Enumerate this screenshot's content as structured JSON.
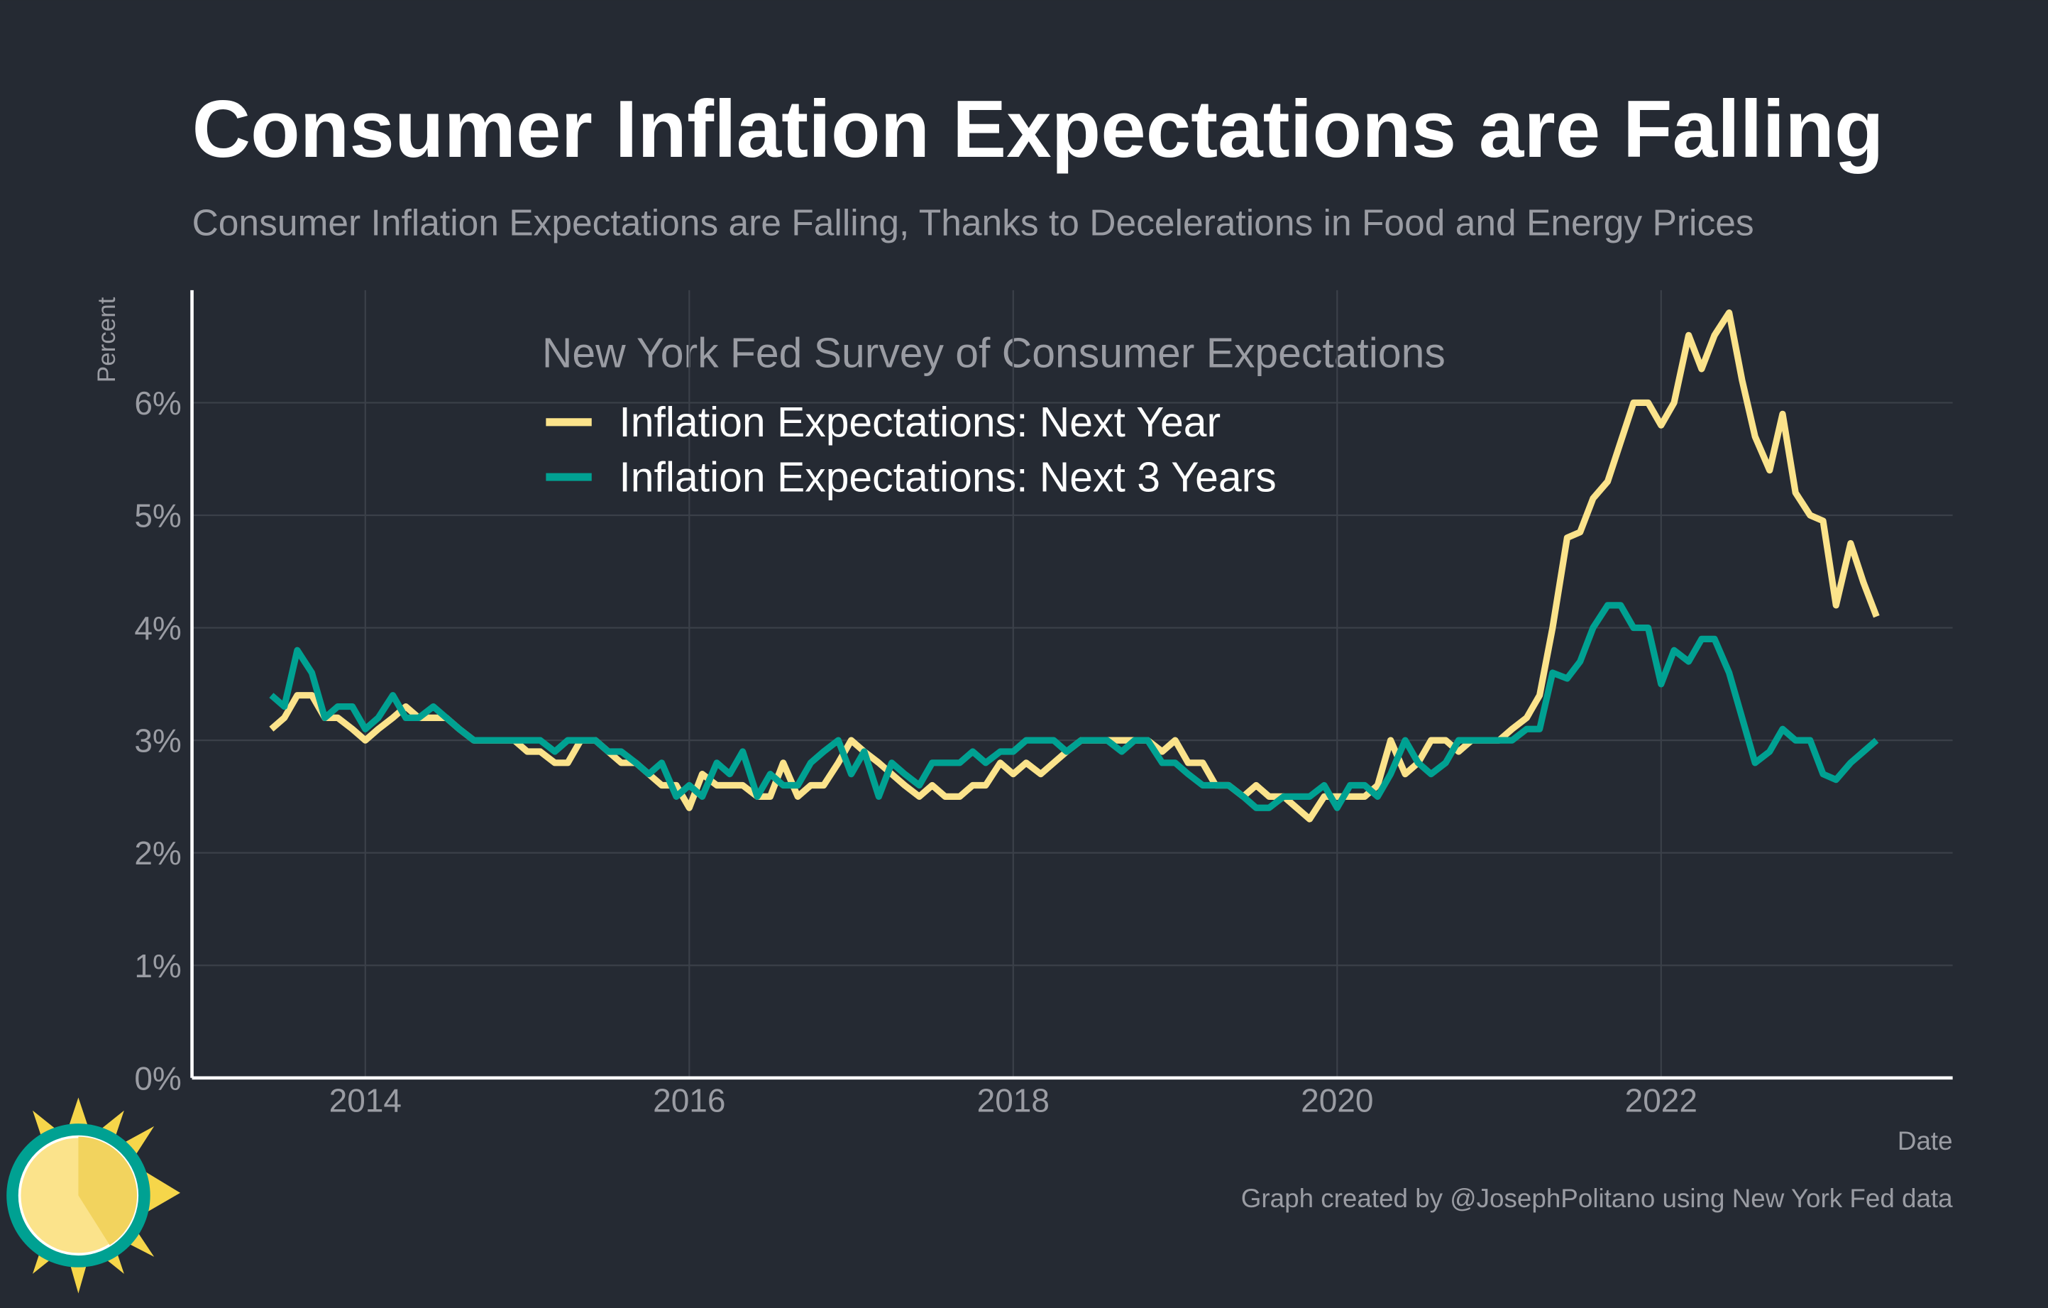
{
  "chart_data": {
    "type": "line",
    "title": "Consumer Inflation Expectations are Falling",
    "subtitle": "Consumer Inflation Expectations are Falling, Thanks to Decelerations in Food and Energy Prices",
    "ylabel": "Percent",
    "xlabel": "Date",
    "legend_title": "New York Fed Survey of Consumer Expectations",
    "caption": "Graph created by @JosephPolitano using New York Fed data",
    "grid": true,
    "xlim": [
      2012.93,
      2023.8
    ],
    "xticks": [
      2014,
      2016,
      2018,
      2020,
      2022
    ],
    "ylim": [
      0,
      7
    ],
    "yticks": [
      {
        "value": 0,
        "label": "0%"
      },
      {
        "value": 1,
        "label": "1%"
      },
      {
        "value": 2,
        "label": "2%"
      },
      {
        "value": 3,
        "label": "3%"
      },
      {
        "value": 4,
        "label": "4%"
      },
      {
        "value": 5,
        "label": "5%"
      },
      {
        "value": 6,
        "label": "6%"
      }
    ],
    "x": [
      2013.42,
      2013.5,
      2013.58,
      2013.67,
      2013.75,
      2013.83,
      2013.92,
      2014.0,
      2014.08,
      2014.17,
      2014.25,
      2014.33,
      2014.42,
      2014.5,
      2014.58,
      2014.67,
      2014.75,
      2014.83,
      2014.92,
      2015.0,
      2015.08,
      2015.17,
      2015.25,
      2015.33,
      2015.42,
      2015.5,
      2015.58,
      2015.67,
      2015.75,
      2015.83,
      2015.92,
      2016.0,
      2016.08,
      2016.17,
      2016.25,
      2016.33,
      2016.42,
      2016.5,
      2016.58,
      2016.67,
      2016.75,
      2016.83,
      2016.92,
      2017.0,
      2017.08,
      2017.17,
      2017.25,
      2017.33,
      2017.42,
      2017.5,
      2017.58,
      2017.67,
      2017.75,
      2017.83,
      2017.92,
      2018.0,
      2018.08,
      2018.17,
      2018.25,
      2018.33,
      2018.42,
      2018.5,
      2018.58,
      2018.67,
      2018.75,
      2018.83,
      2018.92,
      2019.0,
      2019.08,
      2019.17,
      2019.25,
      2019.33,
      2019.42,
      2019.5,
      2019.58,
      2019.67,
      2019.75,
      2019.83,
      2019.92,
      2020.0,
      2020.08,
      2020.17,
      2020.25,
      2020.33,
      2020.42,
      2020.5,
      2020.58,
      2020.67,
      2020.75,
      2020.83,
      2020.92,
      2021.0,
      2021.08,
      2021.17,
      2021.25,
      2021.33,
      2021.42,
      2021.5,
      2021.58,
      2021.67,
      2021.75,
      2021.83,
      2021.92,
      2022.0,
      2022.08,
      2022.17,
      2022.25,
      2022.33,
      2022.42,
      2022.5,
      2022.58,
      2022.67,
      2022.75,
      2022.83,
      2022.92,
      2023.0,
      2023.08,
      2023.17,
      2023.25,
      2023.33
    ],
    "series": [
      {
        "name": "Inflation Expectations: Next Year",
        "color": "#fbe38b",
        "values": [
          3.1,
          3.2,
          3.4,
          3.4,
          3.2,
          3.2,
          3.1,
          3.0,
          3.1,
          3.2,
          3.3,
          3.2,
          3.2,
          3.2,
          3.1,
          3.0,
          3.0,
          3.0,
          3.0,
          2.9,
          2.9,
          2.8,
          2.8,
          3.0,
          3.0,
          2.9,
          2.8,
          2.8,
          2.7,
          2.6,
          2.6,
          2.4,
          2.7,
          2.6,
          2.6,
          2.6,
          2.5,
          2.5,
          2.8,
          2.5,
          2.6,
          2.6,
          2.8,
          3.0,
          2.9,
          2.8,
          2.7,
          2.6,
          2.5,
          2.6,
          2.5,
          2.5,
          2.6,
          2.6,
          2.8,
          2.7,
          2.8,
          2.7,
          2.8,
          2.9,
          3.0,
          3.0,
          3.0,
          3.0,
          3.0,
          3.0,
          2.9,
          3.0,
          2.8,
          2.8,
          2.6,
          2.6,
          2.5,
          2.6,
          2.5,
          2.5,
          2.4,
          2.3,
          2.5,
          2.5,
          2.5,
          2.5,
          2.6,
          3.0,
          2.7,
          2.8,
          3.0,
          3.0,
          2.9,
          3.0,
          3.0,
          3.0,
          3.1,
          3.2,
          3.4,
          4.0,
          4.8,
          4.85,
          5.15,
          5.3,
          5.65,
          6.0,
          6.0,
          5.8,
          6.0,
          6.6,
          6.3,
          6.6,
          6.8,
          6.2,
          5.7,
          5.4,
          5.9,
          5.2,
          5.0,
          4.95,
          4.2,
          4.75,
          4.4,
          4.1
        ]
      },
      {
        "name": "Inflation Expectations: Next 3 Years",
        "color": "#00a192",
        "values": [
          3.4,
          3.3,
          3.8,
          3.6,
          3.2,
          3.3,
          3.3,
          3.1,
          3.2,
          3.4,
          3.2,
          3.2,
          3.3,
          3.2,
          3.1,
          3.0,
          3.0,
          3.0,
          3.0,
          3.0,
          3.0,
          2.9,
          3.0,
          3.0,
          3.0,
          2.9,
          2.9,
          2.8,
          2.7,
          2.8,
          2.5,
          2.6,
          2.5,
          2.8,
          2.7,
          2.9,
          2.5,
          2.7,
          2.6,
          2.6,
          2.8,
          2.9,
          3.0,
          2.7,
          2.9,
          2.5,
          2.8,
          2.7,
          2.6,
          2.8,
          2.8,
          2.8,
          2.9,
          2.8,
          2.9,
          2.9,
          3.0,
          3.0,
          3.0,
          2.9,
          3.0,
          3.0,
          3.0,
          2.9,
          3.0,
          3.0,
          2.8,
          2.8,
          2.7,
          2.6,
          2.6,
          2.6,
          2.5,
          2.4,
          2.4,
          2.5,
          2.5,
          2.5,
          2.6,
          2.4,
          2.6,
          2.6,
          2.5,
          2.7,
          3.0,
          2.8,
          2.7,
          2.8,
          3.0,
          3.0,
          3.0,
          3.0,
          3.0,
          3.1,
          3.1,
          3.6,
          3.55,
          3.7,
          4.0,
          4.2,
          4.2,
          4.0,
          4.0,
          3.5,
          3.8,
          3.7,
          3.9,
          3.9,
          3.6,
          3.2,
          2.8,
          2.9,
          3.1,
          3.0,
          3.0,
          2.7,
          2.65,
          2.8,
          2.9,
          3.0
        ]
      }
    ]
  }
}
